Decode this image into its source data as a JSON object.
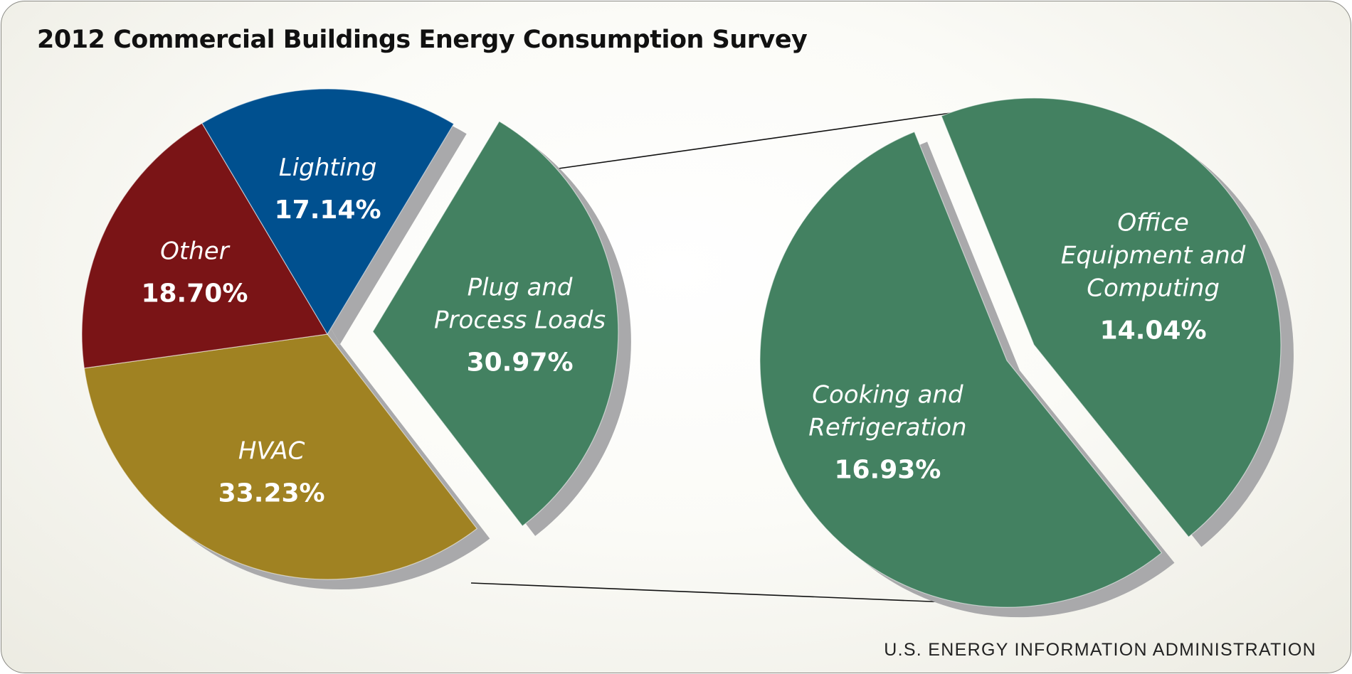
{
  "title": "2012 Commercial Buildings Energy Consumption Survey",
  "source": "U.S. ENERGY INFORMATION ADMINISTRATION",
  "colors": {
    "Lighting": "#00508f",
    "Other": "#7a1416",
    "HVAC": "#a08222",
    "Plug and Process Loads": "#438161",
    "Cooking and Refrigeration": "#438161",
    "Office Equipment and Computing": "#438161",
    "shadow": "#a9a9ab"
  },
  "chart_data": [
    {
      "type": "pie",
      "title": "2012 Commercial Buildings Energy Consumption Survey",
      "slices": [
        {
          "label": "Plug and Process Loads",
          "display": [
            "Plug and",
            "Process Loads"
          ],
          "value": 30.97,
          "value_label": "30.97%",
          "exploded": true
        },
        {
          "label": "HVAC",
          "display": [
            "HVAC"
          ],
          "value": 33.23,
          "value_label": "33.23%"
        },
        {
          "label": "Other",
          "display": [
            "Other"
          ],
          "value": 18.7,
          "value_label": "18.70%"
        },
        {
          "label": "Lighting",
          "display": [
            "Lighting"
          ],
          "value": 17.14,
          "value_label": "17.14%"
        }
      ]
    },
    {
      "type": "pie",
      "title": "",
      "breakdown_of": "Plug and Process Loads",
      "slices": [
        {
          "label": "Office Equipment and Computing",
          "display": [
            "Office",
            "Equipment and",
            "Computing"
          ],
          "value": 14.04,
          "value_label": "14.04%"
        },
        {
          "label": "Cooking and Refrigeration",
          "display": [
            "Cooking and",
            "Refrigeration"
          ],
          "value": 16.93,
          "value_label": "16.93%"
        }
      ]
    }
  ]
}
